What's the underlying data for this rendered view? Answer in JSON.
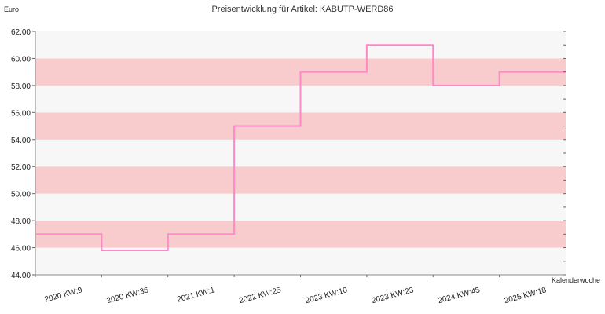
{
  "chart_data": {
    "type": "line",
    "step": true,
    "title": "Preisentwicklung für Artikel: KABUTP-WERD86",
    "ylabel": "Euro",
    "xlabel": "Kalenderwoche",
    "ylim": [
      44.0,
      62.0
    ],
    "yticks": [
      "44.00",
      "46.00",
      "48.00",
      "50.00",
      "52.00",
      "54.00",
      "56.00",
      "58.00",
      "60.00",
      "62.00"
    ],
    "categories": [
      "2020 KW:9",
      "2020 KW:36",
      "2021 KW:1",
      "2022 KW:25",
      "2023 KW:10",
      "2023 KW:23",
      "2024 KW:45",
      "2025 KW:18"
    ],
    "series": [
      {
        "values": [
          47.0,
          45.8,
          47.0,
          55.0,
          59.0,
          61.0,
          58.0,
          59.0
        ]
      }
    ],
    "band_colors": [
      "#f7f7f7",
      "#f8cccc"
    ],
    "line_color": "#ff88c8",
    "grid": false
  }
}
